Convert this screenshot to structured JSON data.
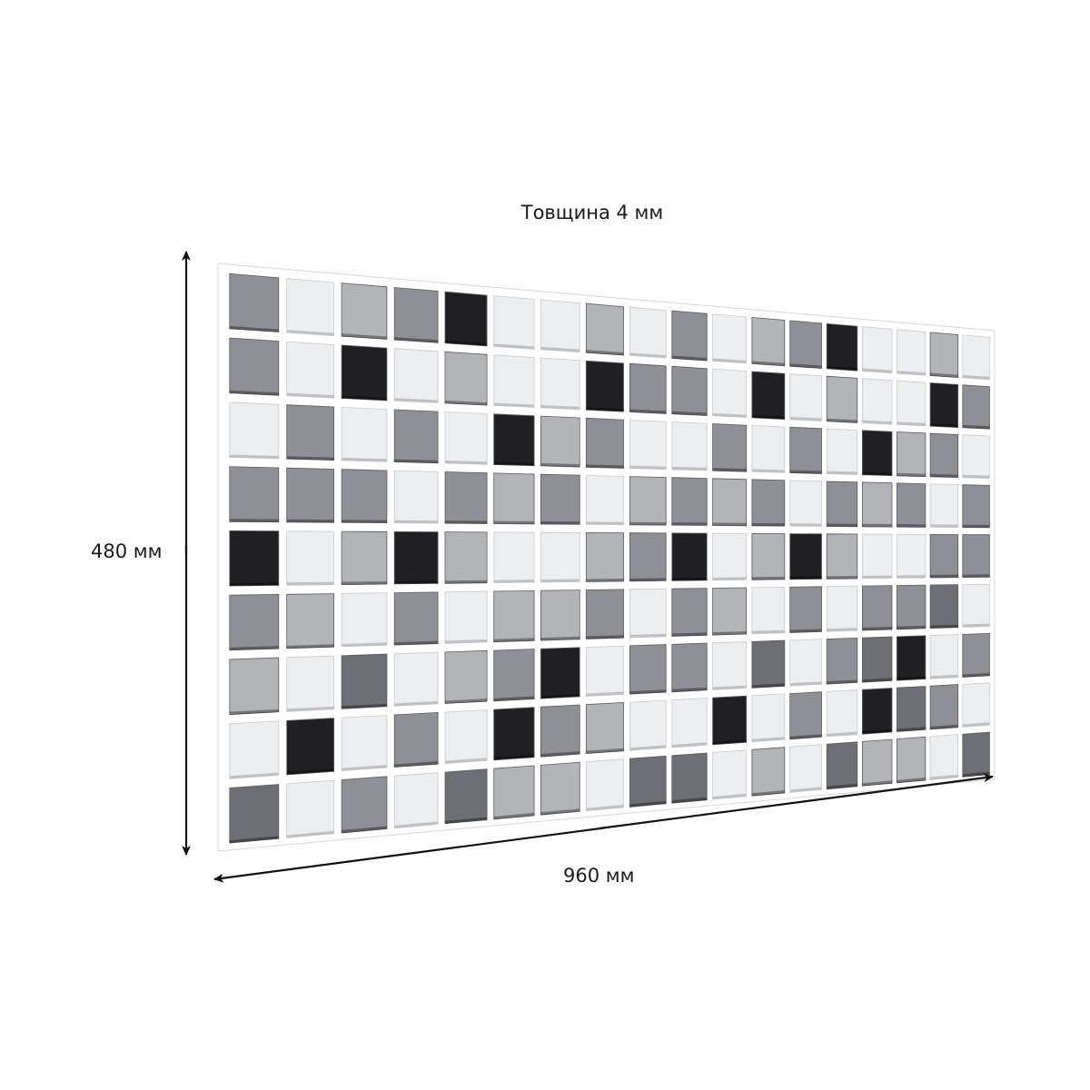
{
  "labels": {
    "thickness": "Товщина 4 мм",
    "height": "480 мм",
    "width": "960 мм"
  },
  "palette": {
    "W": "#eceef0",
    "L": "#b3b4b8",
    "M": "#8f9095",
    "D": "#6e6f74",
    "B": "#202022"
  },
  "panel": {
    "rows": 9,
    "columns": 18,
    "tiles": [
      "MWLMBWWLWMWLMBWWLW",
      "MWBWLWWBMMWBWLWWBM",
      "WMWMWBLMWWMWMWBLMW",
      "MMMWMLMWLMLMWMLMWM",
      "BWLBLWWLMBWLBLWWMM",
      "MLWMWLLMWMLWMWMMDW",
      "LWDWLMBWMMWDWMDBWM",
      "WBWMWBMLWWBWMWBDMW",
      "DWMWDLLWDDWLWDLLWD"
    ]
  }
}
